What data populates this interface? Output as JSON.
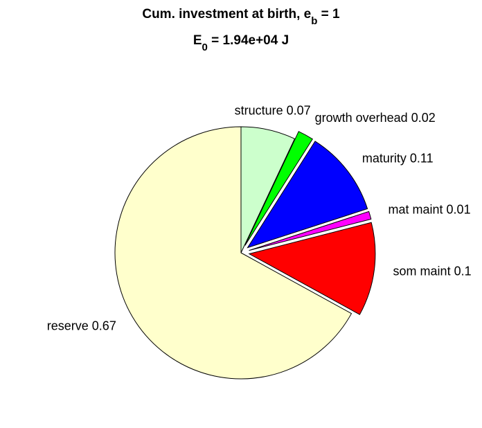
{
  "chart_data": {
    "type": "pie",
    "title": [
      {
        "text": "Cum. investment at birth, e"
      },
      {
        "text": "b",
        "sub": true
      },
      {
        "text": " = 1"
      }
    ],
    "subtitle": [
      {
        "text": "E"
      },
      {
        "text": "0",
        "sub": true
      },
      {
        "text": " = 1.94e+04 J"
      }
    ],
    "categories": [
      "structure",
      "growth overhead",
      "maturity",
      "mat maint",
      "som maint",
      "reserve"
    ],
    "values": [
      0.07,
      0.02,
      0.11,
      0.01,
      0.12,
      0.67
    ],
    "value_labels": [
      "0.07",
      "0.02",
      "0.11",
      "0.01",
      "0.1",
      "0.67"
    ],
    "colors": [
      "#ccffcc",
      "#00ff00",
      "#0000ff",
      "#ff00ff",
      "#ff0000",
      "#ffffcc"
    ],
    "explode": [
      false,
      true,
      true,
      true,
      true,
      false
    ]
  }
}
